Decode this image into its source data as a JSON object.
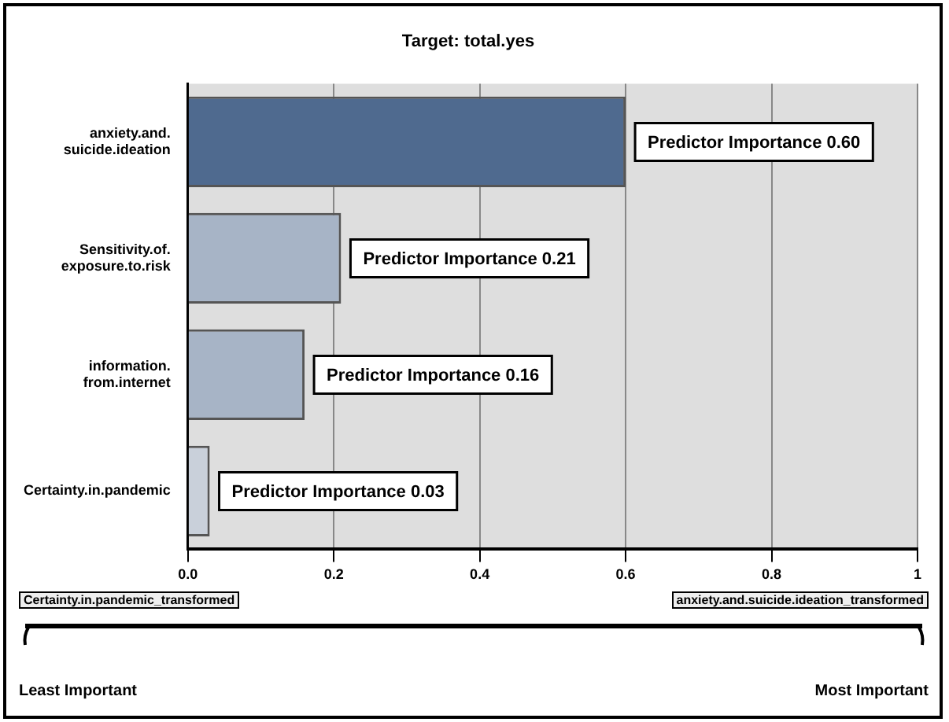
{
  "chart_data": {
    "type": "bar",
    "orientation": "horizontal",
    "title": "Target: total.yes",
    "categories": [
      "anxiety.and.suicide.ideation",
      "Sensitivity.of.exposure.to.risk",
      "information.from.internet",
      "Certainty.in.pandemic"
    ],
    "values": [
      0.6,
      0.21,
      0.16,
      0.03
    ],
    "colors": [
      "#4f6a8f",
      "#a7b4c6",
      "#a7b4c6",
      "#c9d0da"
    ],
    "value_labels": [
      "Predictor Importance 0.60",
      "Predictor Importance 0.21",
      "Predictor Importance 0.16",
      "Predictor Importance 0.03"
    ],
    "xlim": [
      0,
      1
    ],
    "xticks": [
      {
        "value": 0,
        "label": "0.0"
      },
      0.2,
      0.4,
      0.6,
      0.8,
      1
    ],
    "grid": "x",
    "annotations": [
      "Certainty.in.pandemic_transformed",
      "anxiety.and.suicide.ideation_transformed",
      "Least Important",
      "Most Important"
    ]
  }
}
